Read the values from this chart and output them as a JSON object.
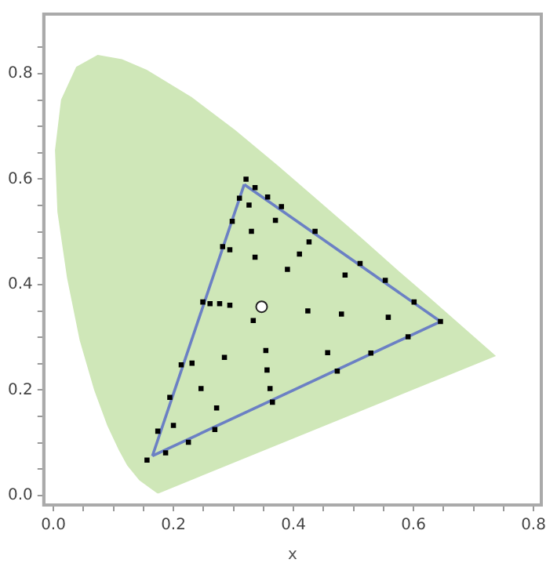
{
  "chart_data": {
    "type": "scatter",
    "xlabel": "x",
    "xlim": [
      -0.016,
      0.813
    ],
    "ylim": [
      -0.018,
      0.913
    ],
    "xticks": [
      {
        "value": 0,
        "label": "0.0"
      },
      {
        "value": 0.05,
        "label": null
      },
      {
        "value": 0.1,
        "label": null
      },
      {
        "value": 0.15,
        "label": null
      },
      {
        "value": 0.2,
        "label": "0.2"
      },
      {
        "value": 0.25,
        "label": null
      },
      {
        "value": 0.3,
        "label": null
      },
      {
        "value": 0.35,
        "label": null
      },
      {
        "value": 0.4,
        "label": "0.4"
      },
      {
        "value": 0.45,
        "label": null
      },
      {
        "value": 0.5,
        "label": null
      },
      {
        "value": 0.55,
        "label": null
      },
      {
        "value": 0.6,
        "label": "0.6"
      },
      {
        "value": 0.65,
        "label": null
      },
      {
        "value": 0.7,
        "label": null
      },
      {
        "value": 0.75,
        "label": null
      },
      {
        "value": 0.8,
        "label": "0.8"
      }
    ],
    "yticks": [
      {
        "value": 0,
        "label": "0.0"
      },
      {
        "value": 0.05,
        "label": null
      },
      {
        "value": 0.1,
        "label": null
      },
      {
        "value": 0.15,
        "label": null
      },
      {
        "value": 0.2,
        "label": "0.2"
      },
      {
        "value": 0.25,
        "label": null
      },
      {
        "value": 0.3,
        "label": null
      },
      {
        "value": 0.35,
        "label": null
      },
      {
        "value": 0.4,
        "label": "0.4"
      },
      {
        "value": 0.45,
        "label": null
      },
      {
        "value": 0.5,
        "label": null
      },
      {
        "value": 0.55,
        "label": null
      },
      {
        "value": 0.6,
        "label": "0.6"
      },
      {
        "value": 0.65,
        "label": null
      },
      {
        "value": 0.7,
        "label": null
      },
      {
        "value": 0.75,
        "label": null
      },
      {
        "value": 0.8,
        "label": "0.8"
      },
      {
        "value": 0.85,
        "label": null
      }
    ],
    "grid": false,
    "legend": false,
    "series": [
      {
        "type": "area",
        "color": "#cfe7b8",
        "marker": "none",
        "x": [
          0.174,
          0.144,
          0.124,
          0.11,
          0.091,
          0.069,
          0.045,
          0.024,
          0.008,
          0.004,
          0.014,
          0.039,
          0.074,
          0.114,
          0.155,
          0.23,
          0.302,
          0.373,
          0.444,
          0.513,
          0.575,
          0.627,
          0.692,
          0.735,
          0.174
        ],
        "values": [
          0.005,
          0.03,
          0.058,
          0.087,
          0.133,
          0.201,
          0.295,
          0.413,
          0.538,
          0.655,
          0.75,
          0.812,
          0.834,
          0.826,
          0.806,
          0.754,
          0.692,
          0.625,
          0.555,
          0.487,
          0.424,
          0.373,
          0.308,
          0.265,
          0.005
        ]
      },
      {
        "type": "line",
        "color": "#6b80c4",
        "marker": "none",
        "x": [
          0.165,
          0.318
        ],
        "values": [
          0.075,
          0.59
        ]
      },
      {
        "type": "line",
        "color": "#6b80c4",
        "marker": "none",
        "x": [
          0.318,
          0.645
        ],
        "values": [
          0.59,
          0.33
        ]
      },
      {
        "type": "line",
        "color": "#6b80c4",
        "marker": "none",
        "x": [
          0.165,
          0.645
        ],
        "values": [
          0.075,
          0.33
        ]
      },
      {
        "color": "#000000",
        "marker": "square",
        "x": [
          0.321,
          0.336,
          0.357,
          0.38,
          0.436,
          0.31,
          0.326,
          0.37,
          0.298,
          0.33,
          0.426,
          0.282,
          0.294,
          0.41,
          0.336,
          0.39,
          0.486,
          0.249,
          0.261,
          0.277,
          0.294,
          0.424,
          0.48,
          0.333,
          0.511,
          0.553,
          0.601,
          0.558,
          0.645,
          0.591,
          0.529,
          0.457,
          0.473,
          0.213,
          0.231,
          0.285,
          0.354,
          0.356,
          0.246,
          0.361,
          0.194,
          0.365,
          0.272,
          0.174,
          0.2,
          0.269,
          0.225,
          0.187,
          0.156
        ],
        "values": [
          0.6,
          0.584,
          0.566,
          0.548,
          0.501,
          0.564,
          0.551,
          0.522,
          0.52,
          0.501,
          0.481,
          0.472,
          0.466,
          0.458,
          0.452,
          0.429,
          0.418,
          0.367,
          0.364,
          0.364,
          0.361,
          0.35,
          0.344,
          0.332,
          0.44,
          0.408,
          0.367,
          0.338,
          0.33,
          0.301,
          0.27,
          0.271,
          0.236,
          0.248,
          0.251,
          0.262,
          0.275,
          0.238,
          0.203,
          0.203,
          0.186,
          0.177,
          0.166,
          0.122,
          0.133,
          0.125,
          0.101,
          0.081,
          0.067
        ]
      },
      {
        "type": "scatter",
        "color": "#ffffff",
        "marker": "circle",
        "x": [
          0.347
        ],
        "values": [
          0.358
        ]
      }
    ]
  }
}
